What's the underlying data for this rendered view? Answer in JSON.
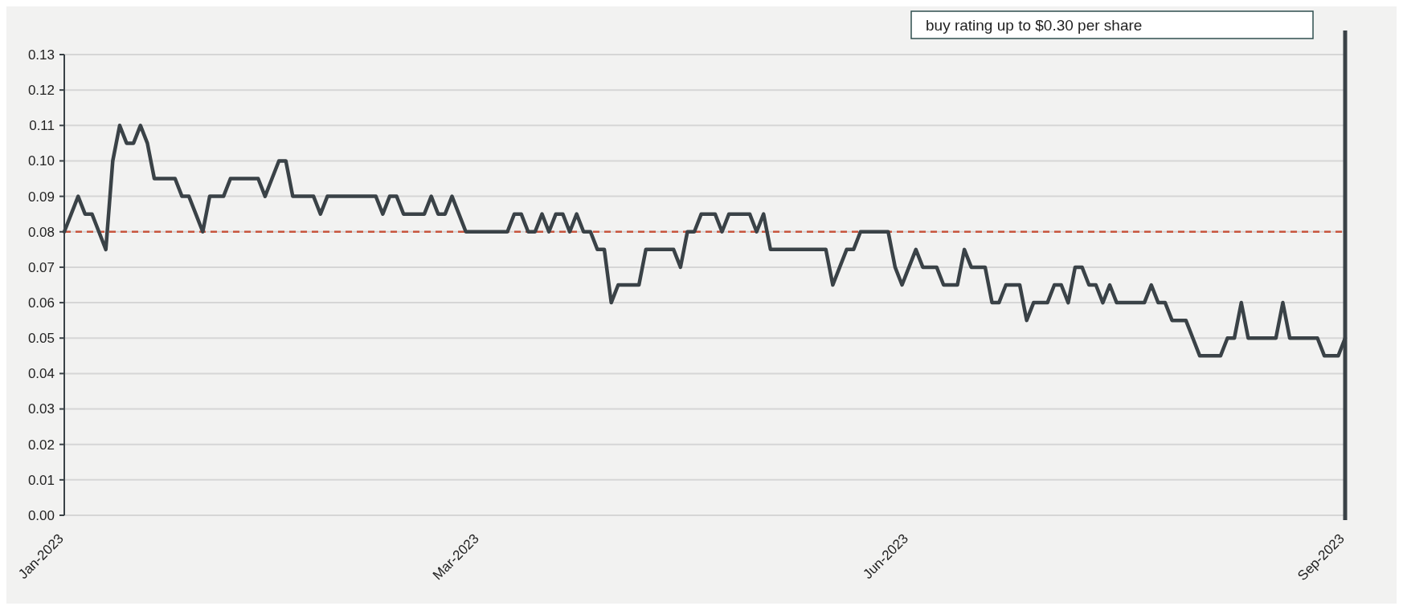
{
  "chart_data": {
    "type": "line",
    "annotations": [
      "buy rating up to $0.30 per share"
    ],
    "categories": [
      "Jan-2023",
      null,
      null,
      null,
      null,
      null,
      null,
      null,
      null,
      null,
      null,
      null,
      null,
      null,
      null,
      null,
      null,
      null,
      null,
      null,
      null,
      null,
      null,
      null,
      null,
      null,
      null,
      null,
      null,
      null,
      null,
      null,
      null,
      null,
      null,
      null,
      null,
      null,
      null,
      null,
      null,
      null,
      null,
      null,
      null,
      null,
      null,
      null,
      null,
      null,
      null,
      null,
      null,
      null,
      null,
      null,
      null,
      null,
      null,
      null,
      "Mar-2023",
      null,
      null,
      null,
      null,
      null,
      null,
      null,
      null,
      null,
      null,
      null,
      null,
      null,
      null,
      null,
      null,
      null,
      null,
      null,
      null,
      null,
      null,
      null,
      null,
      null,
      null,
      null,
      null,
      null,
      null,
      null,
      null,
      null,
      null,
      null,
      null,
      null,
      null,
      null,
      null,
      null,
      null,
      null,
      null,
      null,
      null,
      null,
      null,
      null,
      null,
      null,
      null,
      null,
      null,
      null,
      null,
      null,
      null,
      null,
      null,
      null,
      "Jun-2023",
      null,
      null,
      null,
      null,
      null,
      null,
      null,
      null,
      null,
      null,
      null,
      null,
      null,
      null,
      null,
      null,
      null,
      null,
      null,
      null,
      null,
      null,
      null,
      null,
      null,
      null,
      null,
      null,
      null,
      null,
      null,
      null,
      null,
      null,
      null,
      null,
      null,
      null,
      null,
      null,
      null,
      null,
      null,
      null,
      null,
      null,
      null,
      null,
      null,
      null,
      null,
      null,
      null,
      null,
      null,
      null,
      null,
      null,
      null,
      null,
      null,
      null,
      "Sep-2023"
    ],
    "series": [
      {
        "color": "#3a4247",
        "values": [
          0.08,
          0.085,
          0.09,
          0.085,
          0.085,
          0.08,
          0.075,
          0.1,
          0.11,
          0.105,
          0.105,
          0.11,
          0.105,
          0.095,
          0.095,
          0.095,
          0.095,
          0.09,
          0.09,
          0.085,
          0.08,
          0.09,
          0.09,
          0.09,
          0.095,
          0.095,
          0.095,
          0.095,
          0.095,
          0.09,
          0.095,
          0.1,
          0.1,
          0.09,
          0.09,
          0.09,
          0.09,
          0.085,
          0.09,
          0.09,
          0.09,
          0.09,
          0.09,
          0.09,
          0.09,
          0.09,
          0.085,
          0.09,
          0.09,
          0.085,
          0.085,
          0.085,
          0.085,
          0.09,
          0.085,
          0.085,
          0.09,
          0.085,
          0.08,
          0.08,
          0.08,
          0.08,
          0.08,
          0.08,
          0.08,
          0.085,
          0.085,
          0.08,
          0.08,
          0.085,
          0.08,
          0.085,
          0.085,
          0.08,
          0.085,
          0.08,
          0.08,
          0.075,
          0.075,
          0.06,
          0.065,
          0.065,
          0.065,
          0.065,
          0.075,
          0.075,
          0.075,
          0.075,
          0.075,
          0.07,
          0.08,
          0.08,
          0.085,
          0.085,
          0.085,
          0.08,
          0.085,
          0.085,
          0.085,
          0.085,
          0.08,
          0.085,
          0.075,
          0.075,
          0.075,
          0.075,
          0.075,
          0.075,
          0.075,
          0.075,
          0.075,
          0.065,
          0.07,
          0.075,
          0.075,
          0.08,
          0.08,
          0.08,
          0.08,
          0.08,
          0.07,
          0.065,
          0.07,
          0.075,
          0.07,
          0.07,
          0.07,
          0.065,
          0.065,
          0.065,
          0.075,
          0.07,
          0.07,
          0.07,
          0.06,
          0.06,
          0.065,
          0.065,
          0.065,
          0.055,
          0.06,
          0.06,
          0.06,
          0.065,
          0.065,
          0.06,
          0.07,
          0.07,
          0.065,
          0.065,
          0.06,
          0.065,
          0.06,
          0.06,
          0.06,
          0.06,
          0.06,
          0.065,
          0.06,
          0.06,
          0.055,
          0.055,
          0.055,
          0.05,
          0.045,
          0.045,
          0.045,
          0.045,
          0.05,
          0.05,
          0.06,
          0.05,
          0.05,
          0.05,
          0.05,
          0.05,
          0.06,
          0.05,
          0.05,
          0.05,
          0.05,
          0.05,
          0.045,
          0.045,
          0.045,
          0.05
        ]
      }
    ],
    "ylim": [
      0,
      0.13
    ],
    "yticks": [
      {
        "value": 0,
        "label": "0.00"
      },
      {
        "value": 0.01,
        "label": "0.01"
      },
      {
        "value": 0.02,
        "label": "0.02"
      },
      {
        "value": 0.03,
        "label": "0.03"
      },
      {
        "value": 0.04,
        "label": "0.04"
      },
      {
        "value": 0.05,
        "label": "0.05"
      },
      {
        "value": 0.06,
        "label": "0.06"
      },
      {
        "value": 0.07,
        "label": "0.07"
      },
      {
        "value": 0.08,
        "label": "0.08"
      },
      {
        "value": 0.09,
        "label": "0.09"
      },
      {
        "value": 0.1,
        "label": "0.10"
      },
      {
        "value": 0.11,
        "label": "0.11"
      },
      {
        "value": 0.12,
        "label": "0.12"
      },
      {
        "value": 0.13,
        "label": "0.13"
      }
    ],
    "ref_lines": [
      {
        "axis": "y",
        "value": 0.08,
        "color": "#c8553d",
        "line_style": "dashed"
      },
      {
        "axis": "x",
        "value": "Sep-2023",
        "color": "#3a4247",
        "line_style": "solid"
      }
    ],
    "grid": "y",
    "marker": "none",
    "line_style": "solid"
  }
}
